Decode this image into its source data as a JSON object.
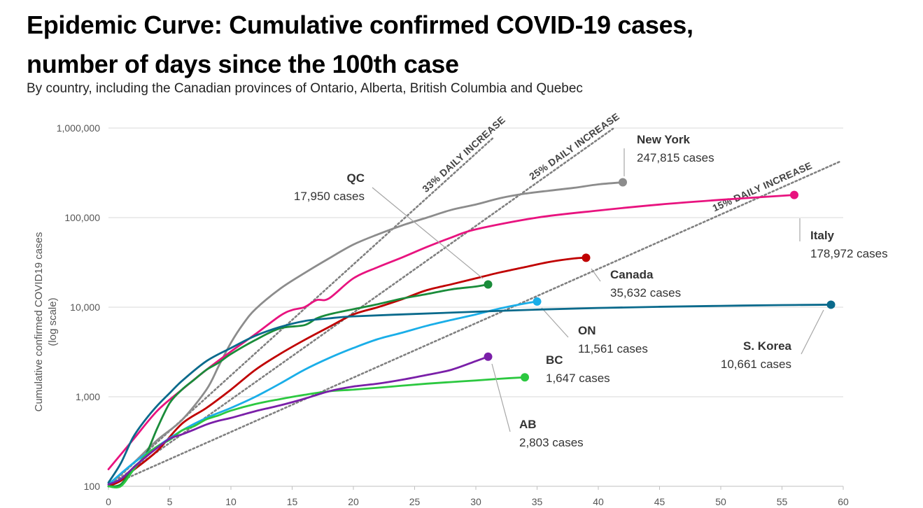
{
  "chart_data": {
    "type": "line",
    "title": "Epidemic Curve: Cumulative confirmed COVID-19 cases, number of days since the 100th case",
    "subtitle": "By country, including the Canadian provinces of Ontario, Alberta, British Columbia and Quebec",
    "ylabel": "Cumulative confirmed COVID19 cases",
    "ylabel_sub": "(log scale)",
    "xlabel": "",
    "xlim": [
      0,
      60
    ],
    "ylim": [
      100,
      1000000
    ],
    "y_scale": "log",
    "grid": "horizontal",
    "x_ticks": [
      "0",
      "5",
      "10",
      "15",
      "20",
      "25",
      "30",
      "35",
      "40",
      "45",
      "50",
      "55",
      "60"
    ],
    "y_ticks": [
      {
        "value": 100,
        "label": "100"
      },
      {
        "value": 1000,
        "label": "1,000"
      },
      {
        "value": 10000,
        "label": "10,000"
      },
      {
        "value": 100000,
        "label": "100,000"
      },
      {
        "value": 1000000,
        "label": "1,000,000"
      }
    ],
    "reference_lines": [
      {
        "label": "33% DAILY INCREASE",
        "rate": 1.33
      },
      {
        "label": "25% DAILY INCREASE",
        "rate": 1.25
      },
      {
        "label": "15% DAILY INCREASE",
        "rate": 1.15
      }
    ],
    "series": [
      {
        "name": "New York",
        "value_label": "247,815 cases",
        "color": "#8c8c8c",
        "x": [
          0,
          2,
          4,
          6,
          8,
          9,
          10,
          11,
          12,
          14,
          16,
          18,
          20,
          22,
          24,
          26,
          28,
          30,
          32,
          34,
          36,
          38,
          40,
          42
        ],
        "y": [
          105,
          180,
          330,
          550,
          1200,
          2200,
          4000,
          6500,
          9500,
          16000,
          24000,
          35000,
          50000,
          65000,
          82000,
          100000,
          122000,
          140000,
          165000,
          185000,
          200000,
          215000,
          235000,
          247815
        ]
      },
      {
        "name": "Italy",
        "value_label": "178,972 cases",
        "color": "#e8137f",
        "x": [
          0,
          2,
          4,
          6,
          8,
          10,
          12,
          14,
          15,
          16,
          17,
          18,
          20,
          22,
          24,
          26,
          28,
          30,
          35,
          40,
          45,
          50,
          56
        ],
        "y": [
          155,
          330,
          700,
          1200,
          2000,
          3200,
          5000,
          8000,
          9300,
          10000,
          12000,
          12500,
          21000,
          28000,
          36000,
          47000,
          60000,
          74000,
          100000,
          120000,
          140000,
          158000,
          178972
        ]
      },
      {
        "name": "Canada",
        "value_label": "35,632 cases",
        "color": "#c00000",
        "x": [
          0,
          1,
          2,
          4,
          6,
          8,
          10,
          12,
          14,
          16,
          18,
          20,
          22,
          24,
          26,
          28,
          30,
          32,
          34,
          36,
          38,
          39
        ],
        "y": [
          100,
          115,
          150,
          250,
          500,
          750,
          1200,
          2000,
          3000,
          4300,
          6000,
          8300,
          10000,
          12300,
          15500,
          18000,
          21000,
          24500,
          28000,
          32000,
          35000,
          35632
        ]
      },
      {
        "name": "QC",
        "value_label": "17,950 cases",
        "color": "#1a8c3a",
        "x": [
          0,
          1,
          2,
          3,
          4,
          5,
          6,
          7,
          8,
          9,
          10,
          12,
          14,
          16,
          17,
          18,
          20,
          22,
          24,
          26,
          28,
          30,
          31
        ],
        "y": [
          100,
          105,
          160,
          220,
          450,
          850,
          1200,
          1550,
          2000,
          2400,
          3000,
          4300,
          5800,
          6300,
          7500,
          8300,
          9500,
          10800,
          12500,
          14000,
          15800,
          17000,
          17950
        ]
      },
      {
        "name": "ON",
        "value_label": "11,561 cases",
        "color": "#1aaee8",
        "x": [
          0,
          2,
          4,
          6,
          8,
          10,
          12,
          14,
          16,
          18,
          20,
          22,
          24,
          26,
          28,
          30,
          32,
          34,
          35
        ],
        "y": [
          105,
          180,
          280,
          420,
          580,
          750,
          1000,
          1400,
          2000,
          2700,
          3500,
          4400,
          5200,
          6200,
          7200,
          8300,
          9700,
          11000,
          11561
        ]
      },
      {
        "name": "S. Korea",
        "value_label": "10,661 cases",
        "color": "#0a6a8c",
        "x": [
          0,
          1,
          2,
          3,
          4,
          5,
          6,
          8,
          10,
          12,
          14,
          16,
          18,
          20,
          25,
          30,
          35,
          40,
          45,
          50,
          55,
          59
        ],
        "y": [
          110,
          180,
          350,
          550,
          800,
          1100,
          1500,
          2500,
          3500,
          4800,
          6000,
          7000,
          7500,
          7900,
          8400,
          8900,
          9400,
          9800,
          10100,
          10350,
          10550,
          10661
        ]
      },
      {
        "name": "BC",
        "value_label": "1,647 cases",
        "color": "#2cc840",
        "x": [
          0,
          1,
          2,
          3,
          4,
          5,
          6,
          7,
          8,
          9,
          10,
          12,
          14,
          16,
          18,
          20,
          22,
          24,
          26,
          28,
          30,
          32,
          34
        ],
        "y": [
          100,
          100,
          150,
          220,
          280,
          330,
          420,
          470,
          560,
          620,
          700,
          830,
          940,
          1050,
          1150,
          1200,
          1260,
          1330,
          1400,
          1460,
          1520,
          1590,
          1647
        ]
      },
      {
        "name": "AB",
        "value_label": "2,803 cases",
        "color": "#7a1fa8",
        "x": [
          0,
          1,
          2,
          3,
          4,
          5,
          6,
          7,
          8,
          9,
          10,
          12,
          14,
          16,
          18,
          20,
          22,
          24,
          26,
          28,
          30,
          31
        ],
        "y": [
          105,
          120,
          160,
          210,
          270,
          340,
          380,
          430,
          490,
          540,
          580,
          690,
          800,
          950,
          1150,
          1300,
          1400,
          1550,
          1750,
          2000,
          2500,
          2803
        ]
      }
    ]
  }
}
